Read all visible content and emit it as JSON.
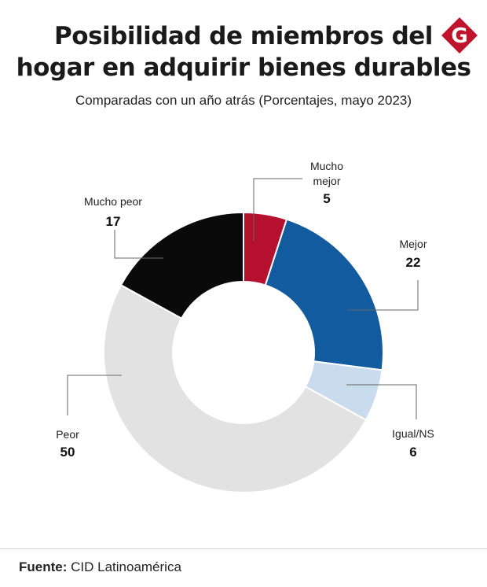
{
  "title_lines": [
    "Posibilidad de miembros del",
    "hogar en adquirir bienes durables"
  ],
  "subtitle": "Comparadas con un año atrás (Porcentajes, mayo 2023)",
  "logo_letter": "G",
  "footer": {
    "source_label": "Fuente:",
    "source_text": "CID Latinoamérica"
  },
  "colors": {
    "mucho_mejor": "#b5112f",
    "mejor": "#115b9e",
    "igual": "#c9dcee",
    "peor": "#e2e2e2",
    "mucho_peor": "#0a0a0a",
    "logo": "#c0142c"
  },
  "chart_data": {
    "type": "pie",
    "variant": "donut",
    "categories": [
      "Mucho mejor",
      "Mejor",
      "Igual/NS",
      "Peor",
      "Mucho peor"
    ],
    "values": [
      5,
      22,
      6,
      50,
      17
    ],
    "title": "Posibilidad de miembros del hogar en adquirir bienes durables",
    "subtitle": "Comparadas con un año atrás (Porcentajes, mayo 2023)"
  }
}
